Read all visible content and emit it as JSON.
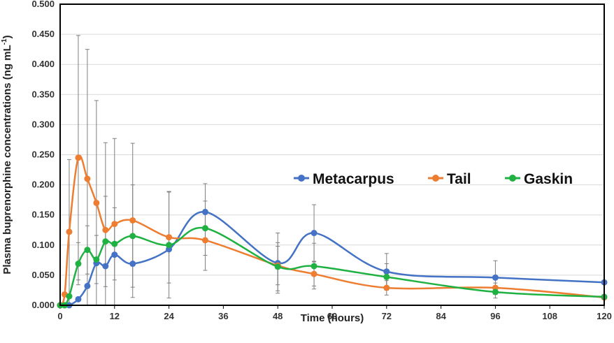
{
  "chart_data": {
    "type": "line",
    "title": "",
    "xlabel": "Time (hours)",
    "ylabel": "Plasma buprenorphine concentrations (ng mL",
    "ylabel_unit_exponent": "-1",
    "ylabel_close": ")",
    "xlim": [
      0,
      120
    ],
    "ylim": [
      0,
      0.5
    ],
    "xticks": [
      0,
      12,
      24,
      36,
      48,
      60,
      72,
      84,
      96,
      108,
      120
    ],
    "yticks": [
      0,
      0.05,
      0.1,
      0.15,
      0.2,
      0.25,
      0.3,
      0.35,
      0.4,
      0.45,
      0.5
    ],
    "ytick_labels": [
      "0.000",
      "0.050",
      "0.100",
      "0.150",
      "0.200",
      "0.250",
      "0.300",
      "0.350",
      "0.400",
      "0.450",
      "0.500"
    ],
    "xtick_labels": [
      "0",
      "12",
      "24",
      "36",
      "48",
      "60",
      "72",
      "84",
      "96",
      "108",
      "120"
    ],
    "grid": true,
    "legend_position": "center-right",
    "series": [
      {
        "name": "Metacarpus",
        "color": "#4472C4",
        "x": [
          0,
          1,
          2,
          4,
          6,
          8,
          10,
          12,
          16,
          24,
          32,
          48,
          56,
          72,
          96,
          120
        ],
        "y": [
          0,
          0,
          0,
          0.01,
          0.032,
          0.07,
          0.065,
          0.084,
          0.069,
          0.093,
          0.155,
          0.07,
          0.12,
          0.056,
          0.046,
          0.038
        ],
        "err": [
          0,
          0,
          0,
          0,
          0,
          0,
          0,
          0,
          0,
          0,
          0.047,
          0.05,
          0.047,
          0.03,
          0.028,
          0
        ]
      },
      {
        "name": "Tail",
        "color": "#ED7D31",
        "x": [
          0,
          1,
          2,
          4,
          6,
          8,
          10,
          12,
          16,
          24,
          32,
          48,
          56,
          72,
          96,
          120
        ],
        "y": [
          0,
          0.018,
          0.122,
          0.245,
          0.21,
          0.17,
          0.125,
          0.135,
          0.141,
          0.113,
          0.108,
          0.066,
          0.052,
          0.029,
          0.029,
          0.013
        ],
        "err": [
          0,
          0,
          0.12,
          0.203,
          0.215,
          0.17,
          0.145,
          0.142,
          0.128,
          0.076,
          0.05,
          0.032,
          0.02,
          0.012,
          0.008,
          0
        ]
      },
      {
        "name": "Gaskin",
        "color": "#1FB141",
        "x": [
          0,
          1,
          2,
          4,
          6,
          8,
          10,
          12,
          16,
          24,
          32,
          48,
          56,
          72,
          96,
          120
        ],
        "y": [
          0,
          0,
          0.015,
          0.069,
          0.092,
          0.076,
          0.106,
          0.102,
          0.115,
          0.1,
          0.128,
          0.064,
          0.065,
          0.047,
          0.022,
          0.014
        ],
        "err": [
          0,
          0,
          0,
          0.035,
          0.04,
          0.04,
          0.075,
          0.06,
          0.085,
          0.088,
          0.045,
          0.04,
          0.038,
          0.022,
          0.01,
          0
        ]
      }
    ]
  }
}
